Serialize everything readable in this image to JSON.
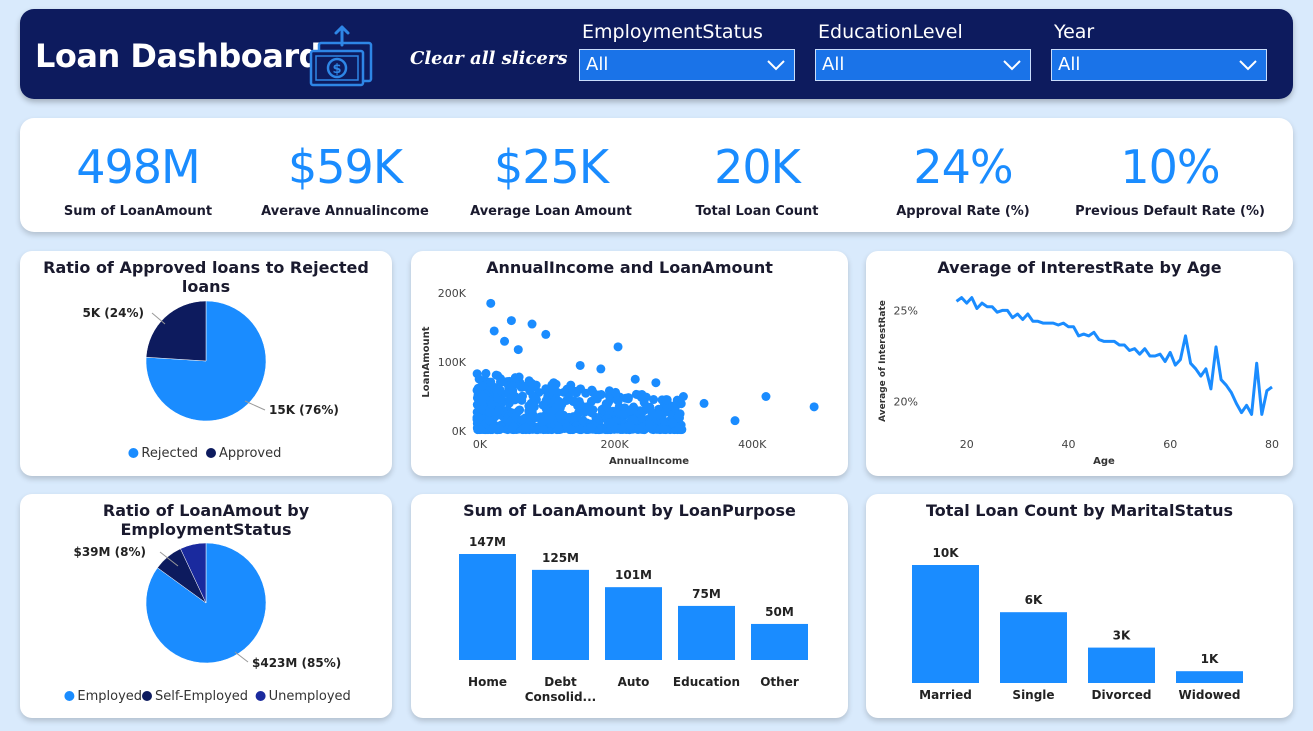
{
  "header": {
    "title": "Loan Dashboard",
    "clear_label": "Clear all slicers",
    "slicers": [
      {
        "label": "EmploymentStatus",
        "value": "All"
      },
      {
        "label": "EducationLevel",
        "value": "All"
      },
      {
        "label": "Year",
        "value": "All"
      }
    ]
  },
  "kpis": [
    {
      "value": "498M",
      "label": "Sum of LoanAmount"
    },
    {
      "value": "$59K",
      "label": "Averave Annualincome"
    },
    {
      "value": "$25K",
      "label": "Average Loan Amount"
    },
    {
      "value": "20K",
      "label": "Total Loan Count"
    },
    {
      "value": "24%",
      "label": "Approval Rate (%)"
    },
    {
      "value": "10%",
      "label": "Previous Default Rate (%)"
    }
  ],
  "colors": {
    "primary": "#1a8cff",
    "dark": "#0d1b5e",
    "navy": "#1a2a9e"
  },
  "chart_data": [
    {
      "type": "pie",
      "title": "Ratio of Approved loans to Rejected loans",
      "slices": [
        {
          "name": "Rejected",
          "value": 76,
          "label": "15K (76%)",
          "color": "#1a8cff"
        },
        {
          "name": "Approved",
          "value": 24,
          "label": "5K (24%)",
          "color": "#0d1b5e"
        }
      ],
      "legend": [
        "Rejected",
        "Approved"
      ]
    },
    {
      "type": "scatter",
      "title": "AnnualIncome and LoanAmount",
      "xlabel": "AnnualIncome",
      "ylabel": "LoanAmount",
      "xlim": [
        0,
        500000
      ],
      "ylim": [
        0,
        200000
      ],
      "xticks": [
        "0K",
        "200K",
        "400K"
      ],
      "yticks": [
        "0K",
        "100K",
        "200K"
      ],
      "outliers": [
        [
          20000,
          185000
        ],
        [
          50000,
          160000
        ],
        [
          80000,
          155000
        ],
        [
          25000,
          145000
        ],
        [
          100000,
          140000
        ],
        [
          205000,
          122000
        ],
        [
          40000,
          130000
        ],
        [
          60000,
          118000
        ],
        [
          180000,
          90000
        ],
        [
          260000,
          70000
        ],
        [
          300000,
          50000
        ],
        [
          330000,
          40000
        ],
        [
          375000,
          15000
        ],
        [
          420000,
          50000
        ],
        [
          490000,
          35000
        ],
        [
          230000,
          75000
        ],
        [
          150000,
          95000
        ]
      ]
    },
    {
      "type": "line",
      "title": "Average of InterestRate by Age",
      "xlabel": "Age",
      "ylabel": "Average of InterestRate",
      "xlim": [
        18,
        80
      ],
      "ylim": [
        18.5,
        26.5
      ],
      "xticks": [
        "20",
        "40",
        "60",
        "80"
      ],
      "yticks": [
        "20%",
        "25%"
      ],
      "x": [
        18,
        19,
        20,
        21,
        22,
        23,
        24,
        25,
        26,
        27,
        28,
        29,
        30,
        31,
        32,
        33,
        34,
        35,
        36,
        37,
        38,
        39,
        40,
        41,
        42,
        43,
        44,
        45,
        46,
        47,
        48,
        49,
        50,
        51,
        52,
        53,
        54,
        55,
        56,
        57,
        58,
        59,
        60,
        61,
        62,
        63,
        64,
        65,
        66,
        67,
        68,
        69,
        70,
        71,
        72,
        73,
        74,
        75,
        76,
        77,
        78,
        79,
        80
      ],
      "y": [
        25.5,
        25.7,
        25.4,
        25.7,
        25.1,
        25.4,
        25.2,
        25.2,
        24.9,
        25.0,
        25.0,
        24.6,
        24.8,
        24.5,
        24.8,
        24.4,
        24.4,
        24.3,
        24.3,
        24.3,
        24.2,
        24.3,
        24.1,
        24.1,
        23.6,
        23.7,
        23.6,
        23.8,
        23.4,
        23.3,
        23.3,
        23.3,
        23.1,
        23.1,
        22.8,
        22.9,
        22.6,
        22.9,
        22.5,
        22.5,
        22.6,
        22.2,
        22.7,
        22.0,
        22.3,
        23.6,
        22.1,
        21.8,
        21.4,
        21.8,
        20.7,
        23.0,
        21.2,
        20.9,
        20.5,
        19.9,
        19.4,
        19.8,
        19.3,
        22.1,
        19.3,
        20.6,
        20.8
      ]
    },
    {
      "type": "pie",
      "title": "Ratio of LoanAmout by EmploymentStatus",
      "slices": [
        {
          "name": "Employed",
          "value": 85,
          "label": "$423M (85%)",
          "color": "#1a8cff"
        },
        {
          "name": "Self-Employed",
          "value": 8,
          "label": "$39M (8%)",
          "color": "#0d1b5e"
        },
        {
          "name": "Unemployed",
          "value": 7,
          "label": "",
          "color": "#1a2a9e"
        }
      ],
      "legend": [
        "Employed",
        "Self-Employed",
        "Unemployed"
      ]
    },
    {
      "type": "bar",
      "title": "Sum of LoanAmount by LoanPurpose",
      "categories": [
        "Home",
        "Debt Consolid...",
        "Auto",
        "Education",
        "Other"
      ],
      "values": [
        147,
        125,
        101,
        75,
        50
      ],
      "value_labels": [
        "147M",
        "125M",
        "101M",
        "75M",
        "50M"
      ],
      "ylim": [
        0,
        147
      ]
    },
    {
      "type": "bar",
      "title": "Total Loan Count by MaritalStatus",
      "categories": [
        "Married",
        "Single",
        "Divorced",
        "Widowed"
      ],
      "values": [
        10,
        6,
        3,
        1
      ],
      "value_labels": [
        "10K",
        "6K",
        "3K",
        "1K"
      ],
      "ylim": [
        0,
        10
      ]
    }
  ]
}
